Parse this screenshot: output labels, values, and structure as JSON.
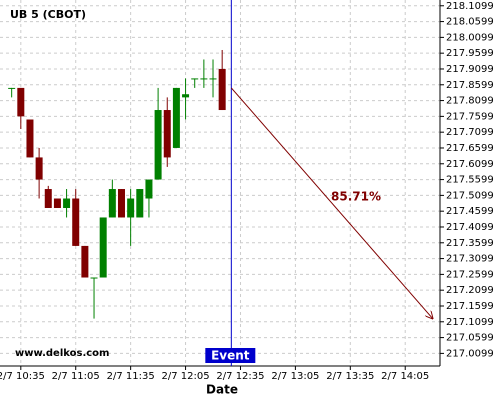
{
  "chart_data": {
    "type": "candlestick",
    "title": "UB 5 (CBOT)",
    "watermark": "www.delkos.com",
    "x_label": "Date",
    "x": [
      "2/7 10:30",
      "2/7 10:35",
      "2/7 10:40",
      "2/7 10:45",
      "2/7 10:50",
      "2/7 10:55",
      "2/7 11:00",
      "2/7 11:05",
      "2/7 11:10",
      "2/7 11:15",
      "2/7 11:20",
      "2/7 11:25",
      "2/7 11:30",
      "2/7 11:35",
      "2/7 11:40",
      "2/7 11:45",
      "2/7 11:50",
      "2/7 11:55",
      "2/7 12:00",
      "2/7 12:05",
      "2/7 12:10",
      "2/7 12:15",
      "2/7 12:20",
      "2/7 12:25"
    ],
    "open": [
      217.85,
      217.85,
      217.75,
      217.63,
      217.53,
      217.5,
      217.47,
      217.5,
      217.35,
      217.25,
      217.25,
      217.44,
      217.53,
      217.44,
      217.44,
      217.5,
      217.56,
      217.78,
      217.66,
      217.82,
      217.88,
      217.88,
      217.88,
      217.91
    ],
    "high": [
      217.85,
      217.85,
      217.75,
      217.66,
      217.54,
      217.5,
      217.53,
      217.53,
      217.35,
      217.25,
      217.44,
      217.56,
      217.53,
      217.53,
      217.53,
      217.56,
      217.85,
      217.82,
      217.85,
      217.88,
      217.88,
      217.94,
      217.94,
      217.97
    ],
    "low": [
      217.82,
      217.72,
      217.63,
      217.5,
      217.47,
      217.47,
      217.44,
      217.35,
      217.25,
      217.12,
      217.25,
      217.44,
      217.44,
      217.35,
      217.44,
      217.44,
      217.56,
      217.6,
      217.66,
      217.75,
      217.85,
      217.85,
      217.82,
      217.78
    ],
    "close": [
      217.85,
      217.76,
      217.63,
      217.56,
      217.47,
      217.47,
      217.5,
      217.35,
      217.25,
      217.25,
      217.44,
      217.53,
      217.44,
      217.5,
      217.53,
      217.56,
      217.78,
      217.63,
      217.85,
      217.83,
      217.88,
      217.88,
      217.88,
      217.78
    ],
    "up_color": "#008000",
    "down_color": "#800000",
    "xlim": [
      "2/7 10:28",
      "2/7 14:24"
    ],
    "xticks": [
      "2/7 10:35",
      "2/7 11:05",
      "2/7 11:35",
      "2/7 12:05",
      "2/7 12:35",
      "2/7 13:05",
      "2/7 13:35",
      "2/7 14:05"
    ],
    "ylim": [
      216.97,
      218.125
    ],
    "yticks": [
      218.1099,
      218.0599,
      218.0099,
      217.9599,
      217.9099,
      217.8599,
      217.8099,
      217.7599,
      217.7099,
      217.6599,
      217.6099,
      217.5599,
      217.5099,
      217.4599,
      217.4099,
      217.3599,
      217.3099,
      217.2599,
      217.2099,
      217.1599,
      217.1099,
      217.0599,
      217.0099
    ],
    "grid": true,
    "event": {
      "label": "Event",
      "x": "2/7 12:30",
      "color": "#0000cc"
    },
    "arrow": {
      "label": "85.71%",
      "x": [
        "2/7 12:30",
        "2/7 14:20"
      ],
      "y": [
        217.85,
        217.12
      ],
      "color": "#800000"
    }
  }
}
